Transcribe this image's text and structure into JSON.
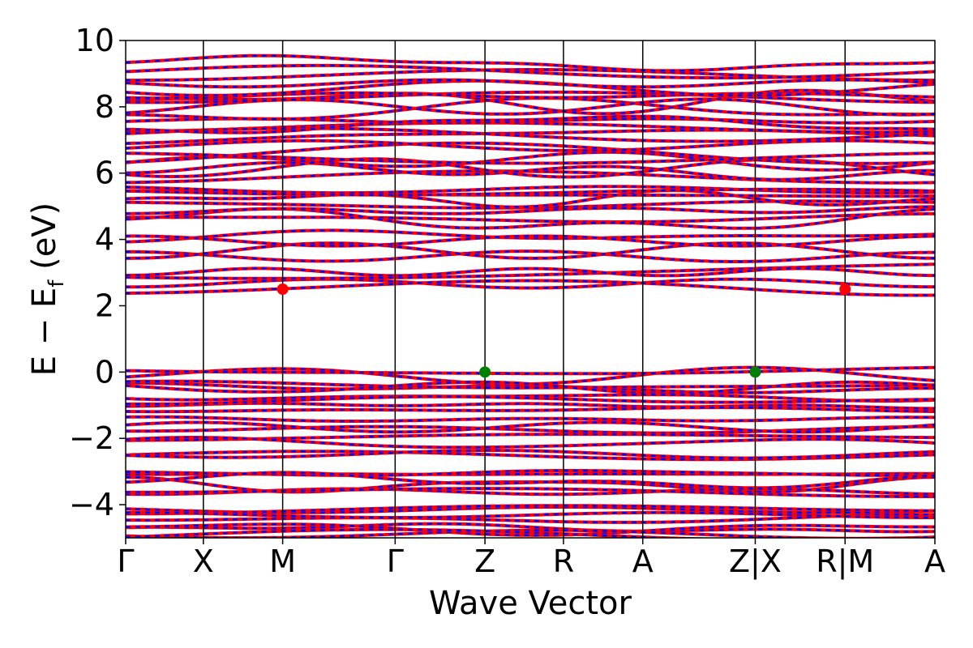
{
  "chart_data": {
    "type": "line",
    "xlabel": "Wave Vector",
    "ylabel": "E − E",
    "ylabel_sub": "f",
    "ylabel_unit": " (eV)",
    "ylim": [
      -5,
      10
    ],
    "yticks": [
      {
        "value": 10,
        "label": "10"
      },
      {
        "value": 8,
        "label": "8"
      },
      {
        "value": 6,
        "label": "6"
      },
      {
        "value": 4,
        "label": "4"
      },
      {
        "value": 2,
        "label": "2"
      },
      {
        "value": 0,
        "label": "0"
      },
      {
        "value": -2,
        "label": "−2"
      },
      {
        "value": -4,
        "label": "−4"
      }
    ],
    "kpath": [
      {
        "label": "Γ",
        "pos": 0.0
      },
      {
        "label": "X",
        "pos": 0.096
      },
      {
        "label": "M",
        "pos": 0.194
      },
      {
        "label": "Γ",
        "pos": 0.333
      },
      {
        "label": "Z",
        "pos": 0.444
      },
      {
        "label": "R",
        "pos": 0.541
      },
      {
        "label": "A",
        "pos": 0.639
      },
      {
        "label": "Z|X",
        "pos": 0.778
      },
      {
        "label": "R|M",
        "pos": 0.889
      },
      {
        "label": "A",
        "pos": 1.0
      }
    ],
    "segments": [
      [
        0.0,
        0.096
      ],
      [
        0.096,
        0.194
      ],
      [
        0.194,
        0.333
      ],
      [
        0.333,
        0.444
      ],
      [
        0.444,
        0.541
      ],
      [
        0.541,
        0.639
      ],
      [
        0.639,
        0.778
      ],
      [
        0.778,
        0.889
      ],
      [
        0.889,
        1.0
      ]
    ],
    "band_colors": {
      "line": "#ff0000",
      "dash": "#0000ff"
    },
    "conduction_band_bases": [
      2.7,
      3.0,
      3.6,
      4.1,
      4.6,
      4.9,
      5.3,
      5.6,
      5.9,
      6.3,
      6.6,
      7.0,
      7.3,
      7.6,
      7.9,
      8.2,
      8.5,
      8.8,
      9.2
    ],
    "valence_band_bases": [
      -0.05,
      -0.35,
      -0.6,
      -0.95,
      -1.3,
      -1.75,
      -2.1,
      -2.5,
      -2.9,
      -3.3,
      -3.65,
      -4.0,
      -4.3,
      -4.7,
      -5.0
    ],
    "cbm_markers": [
      {
        "x": 0.194,
        "y": 2.5
      },
      {
        "x": 0.889,
        "y": 2.5
      }
    ],
    "vbm_markers": [
      {
        "x": 0.444,
        "y": 0.0
      },
      {
        "x": 0.778,
        "y": 0.0
      }
    ],
    "marker_colors": {
      "cbm": "#ff0000",
      "vbm": "#008000"
    }
  }
}
